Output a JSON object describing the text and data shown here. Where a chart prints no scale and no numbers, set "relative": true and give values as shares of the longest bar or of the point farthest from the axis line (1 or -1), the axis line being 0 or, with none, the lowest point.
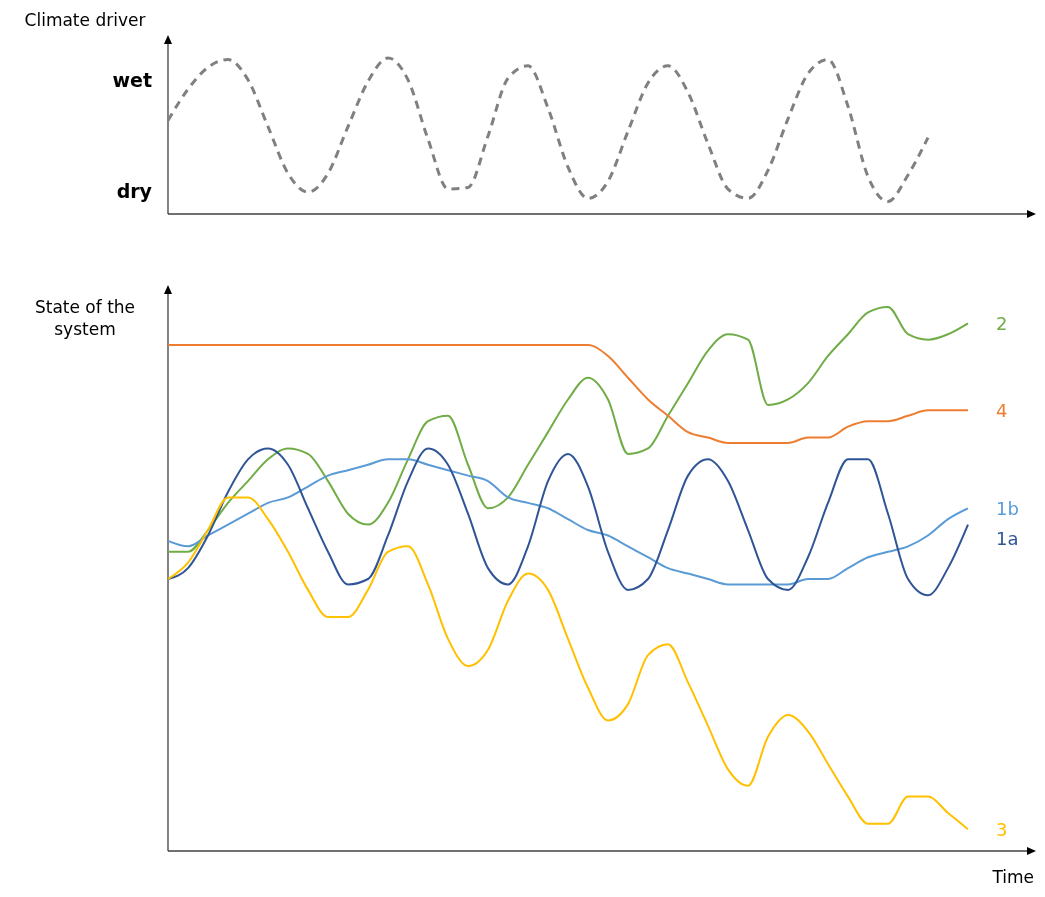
{
  "chart_data": [
    {
      "type": "line",
      "ylabel": "Climate driver",
      "categories": [
        null,
        null,
        null,
        null,
        null,
        null,
        null,
        null,
        null,
        null,
        null,
        null,
        null,
        null,
        null,
        null,
        null,
        null,
        null,
        null,
        null,
        null,
        null,
        null,
        null,
        null,
        null,
        null,
        null,
        null,
        null,
        null,
        null,
        null,
        null,
        null,
        null,
        null,
        null,
        null,
        null,
        null,
        null,
        null
      ],
      "series": [
        {
          "color": "#808080",
          "values": [
            0.6,
            0.8,
            0.94,
            0.99,
            0.86,
            0.56,
            0.26,
            0.14,
            0.26,
            0.56,
            0.85,
            1,
            0.86,
            0.48,
            0.16,
            0.17,
            0.5,
            0.87,
            0.95,
            0.68,
            0.3,
            0.1,
            0.21,
            0.53,
            0.84,
            0.95,
            0.78,
            0.45,
            0.16,
            0.1,
            0.28,
            0.61,
            0.9,
            0.99,
            0.69,
            0.24,
            0.08,
            0.25,
            0.49,
            null,
            null,
            null,
            null,
            null
          ]
        }
      ],
      "line_style": "dashed",
      "relative": true,
      "annotations": [
        "wet",
        "dry"
      ]
    },
    {
      "type": "line",
      "ylabel": "State of the system",
      "xlabel": "Time",
      "relative": true,
      "categories": [
        null,
        null,
        null,
        null,
        null,
        null,
        null,
        null,
        null,
        null,
        null,
        null,
        null,
        null,
        null,
        null,
        null,
        null,
        null,
        null,
        null,
        null,
        null,
        null,
        null,
        null,
        null,
        null,
        null,
        null,
        null,
        null,
        null,
        null,
        null,
        null,
        null,
        null,
        null,
        null,
        null,
        null,
        null,
        null
      ],
      "series": [
        {
          "name": "2",
          "color": "#70ad47",
          "values": [
            0.55,
            0.55,
            0.59,
            0.64,
            0.68,
            0.72,
            0.74,
            0.73,
            0.68,
            0.62,
            0.6,
            0.64,
            0.72,
            0.79,
            0.8,
            0.71,
            0.63,
            0.65,
            0.71,
            0.77,
            0.83,
            0.87,
            0.83,
            0.73,
            0.74,
            0.8,
            0.86,
            0.92,
            0.95,
            0.94,
            0.82,
            0.83,
            0.86,
            0.91,
            0.95,
            0.99,
            1,
            0.95,
            0.94,
            0.95,
            0.97,
            null,
            null,
            null
          ]
        },
        {
          "name": "4",
          "color": "#ed7d31",
          "values": [
            0.93,
            0.93,
            0.93,
            0.93,
            0.93,
            0.93,
            0.93,
            0.93,
            0.93,
            0.93,
            0.93,
            0.93,
            0.93,
            0.93,
            0.93,
            0.93,
            0.93,
            0.93,
            0.93,
            0.93,
            0.93,
            0.93,
            0.91,
            0.87,
            0.83,
            0.8,
            0.77,
            0.76,
            0.75,
            0.75,
            0.75,
            0.75,
            0.76,
            0.76,
            0.78,
            0.79,
            0.79,
            0.8,
            0.81,
            0.81,
            0.81,
            null,
            null,
            null
          ]
        },
        {
          "name": "1b",
          "color": "#5b9bd5",
          "values": [
            0.57,
            0.56,
            0.58,
            0.6,
            0.62,
            0.64,
            0.65,
            0.67,
            0.69,
            0.7,
            0.71,
            0.72,
            0.72,
            0.71,
            0.7,
            0.69,
            0.68,
            0.65,
            0.64,
            0.63,
            0.61,
            0.59,
            0.58,
            0.56,
            0.54,
            0.52,
            0.51,
            0.5,
            0.49,
            0.49,
            0.49,
            0.49,
            0.5,
            0.5,
            0.52,
            0.54,
            0.55,
            0.56,
            0.58,
            0.61,
            0.63,
            null,
            null,
            null
          ]
        },
        {
          "name": "1a",
          "color": "#2f5597",
          "values": [
            0.5,
            0.52,
            0.58,
            0.66,
            0.72,
            0.74,
            0.71,
            0.63,
            0.55,
            0.49,
            0.5,
            0.58,
            0.68,
            0.74,
            0.71,
            0.62,
            0.52,
            0.49,
            0.56,
            0.68,
            0.73,
            0.67,
            0.55,
            0.48,
            0.5,
            0.59,
            0.69,
            0.72,
            0.68,
            0.59,
            0.5,
            0.48,
            0.54,
            0.64,
            0.72,
            0.72,
            0.62,
            0.5,
            0.47,
            0.52,
            0.6,
            null,
            null,
            null
          ]
        },
        {
          "name": "3",
          "color": "#ffc000",
          "values": [
            0.5,
            0.53,
            0.59,
            0.65,
            0.65,
            0.61,
            0.55,
            0.48,
            0.43,
            0.43,
            0.48,
            0.55,
            0.56,
            0.49,
            0.39,
            0.34,
            0.37,
            0.46,
            0.51,
            0.48,
            0.39,
            0.3,
            0.24,
            0.27,
            0.36,
            0.38,
            0.31,
            0.23,
            0.15,
            0.12,
            0.21,
            0.25,
            0.22,
            0.16,
            0.1,
            0.05,
            0.05,
            0.1,
            0.1,
            0.07,
            0.04,
            null,
            null,
            null
          ]
        }
      ]
    }
  ]
}
